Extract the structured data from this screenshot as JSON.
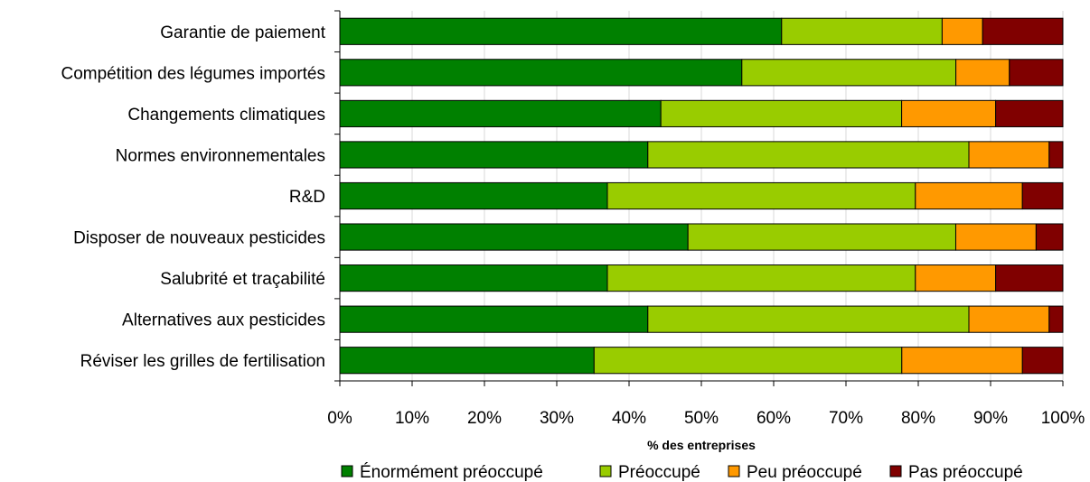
{
  "chart_data": {
    "type": "bar",
    "orientation": "horizontal",
    "stacked": "percent",
    "categories": [
      "Garantie de paiement",
      "Compétition des légumes importés",
      "Changements climatiques",
      "Normes environnementales",
      "R&D",
      "Disposer de nouveaux pesticides",
      "Salubrité et traçabilité",
      "Alternatives aux pesticides",
      "Réviser les grilles de fertilisation"
    ],
    "series": [
      {
        "name": "Énormément préoccupé",
        "color": "#008000",
        "values": [
          61.1,
          55.6,
          44.4,
          42.6,
          37.0,
          48.1,
          37.0,
          42.6,
          35.2
        ]
      },
      {
        "name": "Préoccupé",
        "color": "#99cc00",
        "values": [
          22.2,
          29.6,
          33.3,
          44.4,
          42.6,
          37.0,
          42.6,
          44.4,
          42.6
        ]
      },
      {
        "name": "Peu préoccupé",
        "color": "#ff9900",
        "values": [
          5.6,
          7.4,
          13.0,
          11.1,
          14.8,
          11.1,
          11.1,
          11.1,
          16.7
        ]
      },
      {
        "name": "Pas préoccupé",
        "color": "#800000",
        "values": [
          11.1,
          7.4,
          9.3,
          1.9,
          5.6,
          3.7,
          9.3,
          1.9,
          5.6
        ]
      }
    ],
    "xlabel": "% des entreprises",
    "xlim": [
      0,
      100
    ],
    "xticks": [
      "0%",
      "10%",
      "20%",
      "30%",
      "40%",
      "50%",
      "60%",
      "70%",
      "80%",
      "90%",
      "100%"
    ],
    "grid": "vertical",
    "legend": "bottom"
  }
}
